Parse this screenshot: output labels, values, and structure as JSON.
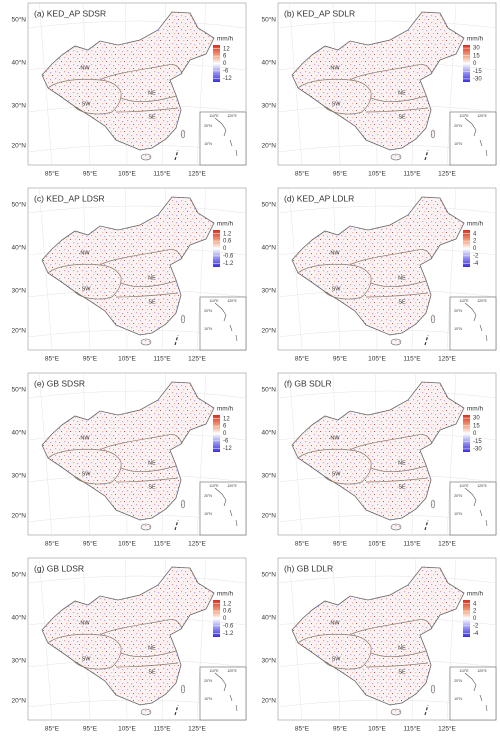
{
  "panels": [
    {
      "title": "(a) KED_AP SDSR",
      "legend_title": "mm/h",
      "clim": [
        -15,
        15
      ],
      "ticks": [
        12,
        6,
        0,
        -6,
        -12
      ]
    },
    {
      "title": "(b) KED_AP SDLR",
      "legend_title": "mm/h",
      "clim": [
        -36,
        36
      ],
      "ticks": [
        30,
        15,
        0,
        -15,
        -30
      ]
    },
    {
      "title": "(c) KED_AP LDSR",
      "legend_title": "mm/h",
      "clim": [
        -1.5,
        1.5
      ],
      "ticks": [
        1.2,
        0.6,
        0,
        -0.6,
        -1.2
      ]
    },
    {
      "title": "(d) KED_AP LDLR",
      "legend_title": "mm/h",
      "clim": [
        -5,
        5
      ],
      "ticks": [
        4,
        2,
        0,
        -2,
        -4
      ]
    },
    {
      "title": "(e) GB SDSR",
      "legend_title": "mm/h",
      "clim": [
        -15,
        15
      ],
      "ticks": [
        12,
        6,
        0,
        -6,
        -12
      ]
    },
    {
      "title": "(f) GB SDLR",
      "legend_title": "mm/h",
      "clim": [
        -36,
        36
      ],
      "ticks": [
        30,
        15,
        0,
        -15,
        -30
      ]
    },
    {
      "title": "(g) GB LDSR",
      "legend_title": "mm/h",
      "clim": [
        -1.5,
        1.5
      ],
      "ticks": [
        1.2,
        0.6,
        0,
        -0.6,
        -1.2
      ]
    },
    {
      "title": "(h) GB LDLR",
      "legend_title": "mm/h",
      "clim": [
        -5,
        5
      ],
      "ticks": [
        4,
        2,
        0,
        -2,
        -4
      ]
    }
  ],
  "lat_labels": [
    "50°N",
    "40°N",
    "30°N",
    "20°N"
  ],
  "lon_labels": [
    "85°E",
    "95°E",
    "105°E",
    "115°E",
    "125°E"
  ],
  "regions": [
    "NW",
    "SW",
    "NE",
    "SE"
  ],
  "inset_lon_labels": [
    "110°E",
    "120°E"
  ],
  "inset_lat_labels": [
    "20°N",
    "10°N"
  ]
}
